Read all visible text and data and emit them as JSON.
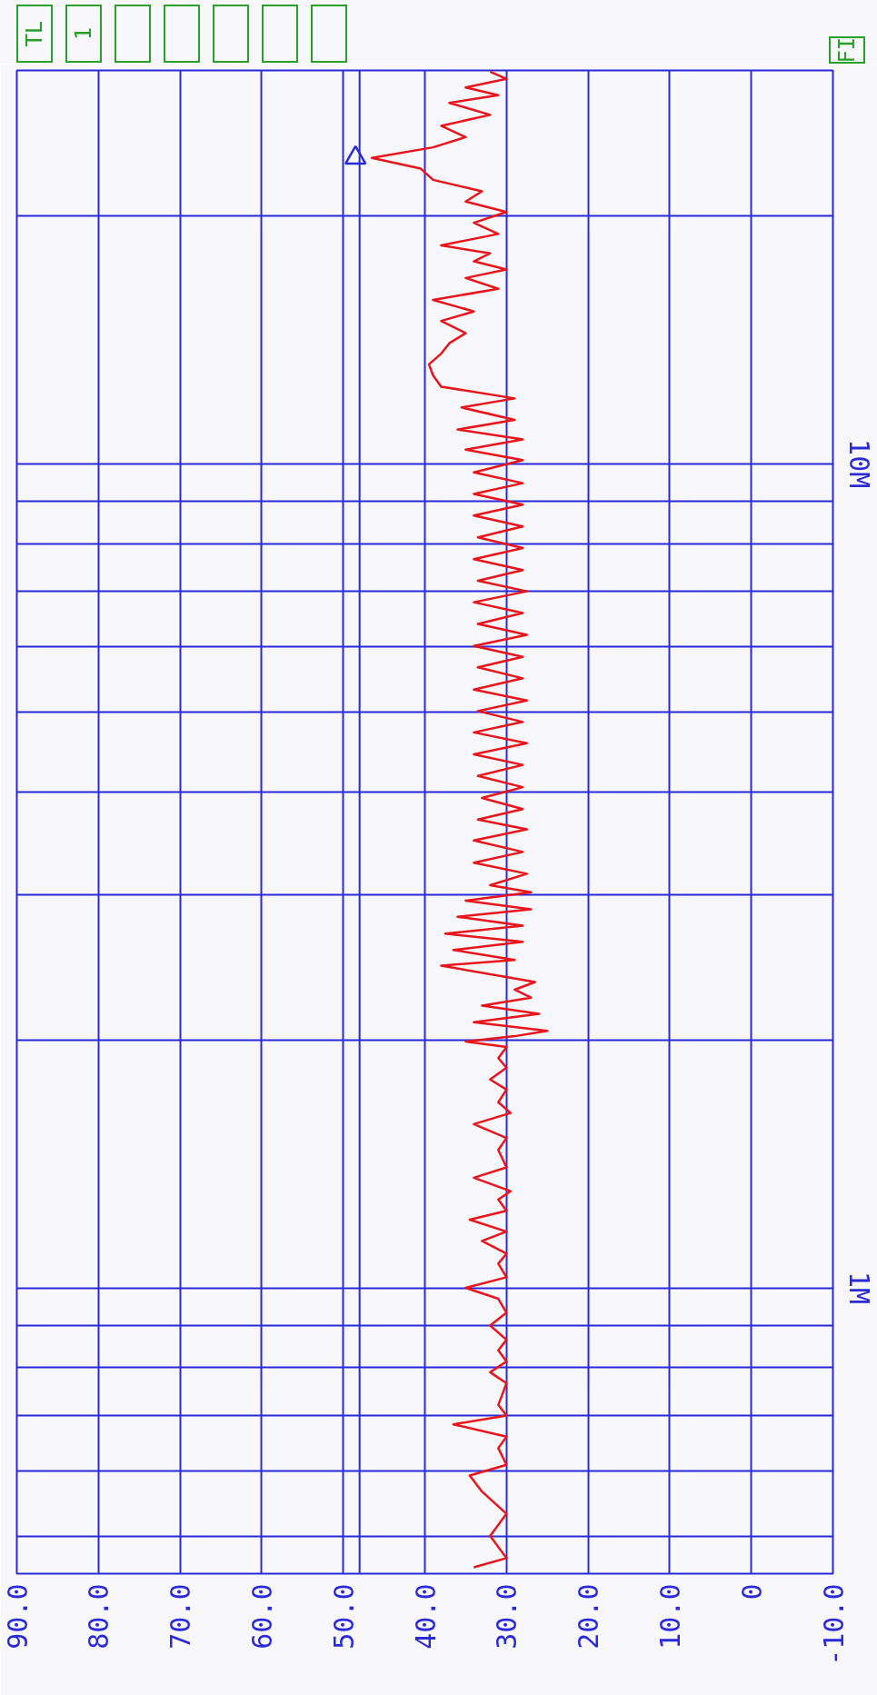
{
  "chart_data": {
    "type": "line",
    "annotations": [
      "TL",
      "1",
      "FI"
    ],
    "xlim": [
      90,
      -10
    ],
    "ylim": [
      0.45,
      30
    ],
    "yticks": [
      {
        "value": 0.5,
        "label": null
      },
      {
        "value": 0.6,
        "label": null
      },
      {
        "value": 0.7,
        "label": null
      },
      {
        "value": 0.8,
        "label": null
      },
      {
        "value": 0.9,
        "label": null
      },
      {
        "value": 1,
        "label": "1M"
      },
      {
        "value": 2,
        "label": null
      },
      {
        "value": 3,
        "label": null
      },
      {
        "value": 4,
        "label": null
      },
      {
        "value": 5,
        "label": null
      },
      {
        "value": 6,
        "label": null
      },
      {
        "value": 7,
        "label": null
      },
      {
        "value": 8,
        "label": null
      },
      {
        "value": 9,
        "label": null
      },
      {
        "value": 10,
        "label": "10M"
      },
      {
        "value": 20,
        "label": null
      }
    ],
    "xticks": [
      {
        "value": 90,
        "label": "90.0"
      },
      {
        "value": 80,
        "label": "80.0"
      },
      {
        "value": 70,
        "label": "70.0"
      },
      {
        "value": 60,
        "label": "60.0"
      },
      {
        "value": 50,
        "label": "50.0"
      },
      {
        "value": 40,
        "label": "40.0"
      },
      {
        "value": 30,
        "label": "30.0"
      },
      {
        "value": 20,
        "label": "20.0"
      },
      {
        "value": 10,
        "label": "10.0"
      },
      0,
      {
        "value": -10,
        "label": "-10.0"
      }
    ],
    "log": "y",
    "grid": true,
    "ref_lines": [
      {
        "axis": "x",
        "value": 48,
        "color": "#2a2ad8"
      }
    ],
    "series": [
      {
        "color": "#e8151b",
        "values": [
          0.458,
          0.47,
          0.5,
          0.532,
          0.566,
          0.592,
          0.61,
          0.639,
          0.66,
          0.683,
          0.7,
          0.721,
          0.766,
          0.79,
          0.814,
          0.84,
          0.865,
          0.9,
          0.933,
          0.97,
          1.0,
          1.03,
          1.07,
          1.1,
          1.14,
          1.17,
          1.21,
          1.24,
          1.28,
          1.31,
          1.36,
          1.4,
          1.47,
          1.52,
          1.58,
          1.63,
          1.68,
          1.74,
          1.79,
          1.85,
          1.9,
          1.96,
          1.99,
          2.02,
          2.05,
          2.1,
          2.15,
          2.2,
          2.25,
          2.3,
          2.35,
          2.46,
          2.5,
          2.57,
          2.63,
          2.69,
          2.75,
          2.82,
          2.88,
          2.95,
          3.02,
          3.08,
          3.18,
          3.28,
          3.38,
          3.49,
          3.6,
          3.7,
          3.81,
          3.93,
          4.05,
          4.18,
          4.31,
          4.44,
          4.58,
          4.72,
          4.86,
          5.01,
          5.16,
          5.32,
          5.49,
          5.66,
          5.83,
          6.01,
          6.2,
          6.39,
          6.59,
          6.79,
          7.0,
          7.21,
          7.43,
          7.66,
          7.9,
          8.14,
          8.39,
          8.65,
          8.92,
          9.19,
          9.47,
          9.76,
          10.1,
          10.4,
          10.7,
          11.0,
          11.3,
          11.7,
          12.0,
          12.4,
          12.8,
          13.2,
          13.6,
          14.0,
          14.4,
          14.9,
          15.3,
          15.8,
          16.3,
          16.8,
          17.2,
          17.6,
          18.0,
          18.4,
          19.0,
          19.6,
          20.2,
          20.8,
          21.4,
          22.1,
          22.8,
          23.5,
          24.2,
          24.9,
          25.7,
          26.5,
          27.4,
          28.0,
          28.6,
          29.3,
          29.9
        ],
        "x": [
          34,
          30,
          32,
          30,
          33,
          34.5,
          30,
          31,
          30,
          36.5,
          30,
          31,
          30,
          32,
          30,
          31,
          30,
          32,
          30,
          31,
          35,
          30,
          31,
          30,
          33,
          30,
          34.5,
          30,
          31,
          29.5,
          34,
          30,
          31,
          30,
          34,
          29.5,
          31,
          30,
          32,
          30,
          31,
          30,
          35,
          29,
          25,
          34,
          26,
          33,
          27,
          29,
          26.5,
          38,
          29,
          36.5,
          28,
          37.5,
          28,
          36,
          27,
          35,
          27,
          32,
          27.5,
          34,
          28,
          34,
          27.5,
          33.5,
          28,
          33,
          28,
          33.5,
          28,
          34,
          27.5,
          34,
          28,
          33.5,
          27.5,
          34,
          28,
          33.5,
          28,
          34,
          27.5,
          33.5,
          28,
          34,
          27.5,
          33.5,
          28,
          34,
          28,
          33.5,
          28,
          34,
          28,
          34,
          28,
          34,
          28,
          35,
          28,
          36,
          29,
          35.5,
          29,
          38,
          39,
          39.5,
          38,
          37,
          35,
          38,
          34,
          39,
          31,
          35,
          30,
          34,
          32,
          38,
          31,
          34,
          30,
          35,
          33,
          39,
          40.5,
          46.5,
          39,
          35,
          38,
          32,
          37,
          31,
          35,
          30,
          32
        ]
      },
      {
        "color": "#2a2ad8",
        "type": "scatter",
        "marker": "triangle",
        "x": [
          48.5
        ],
        "values": [
          23.5
        ]
      }
    ]
  }
}
